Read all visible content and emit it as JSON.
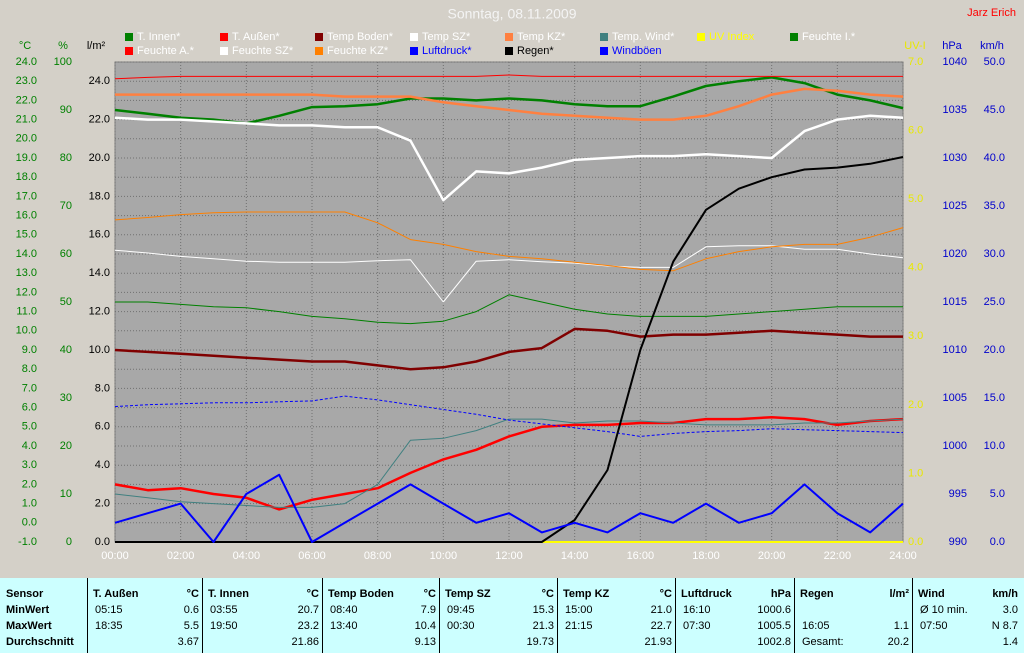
{
  "chart_data": {
    "type": "line",
    "title": "Sonntag, 08.11.2009",
    "author": "Jarz Erich",
    "x": [
      0,
      1,
      2,
      3,
      4,
      5,
      6,
      7,
      8,
      9,
      10,
      11,
      12,
      13,
      14,
      15,
      16,
      17,
      18,
      19,
      20,
      21,
      22,
      23,
      24
    ],
    "xlim": [
      0,
      24
    ],
    "xticks": [
      {
        "value": 0,
        "label": "00:00"
      },
      {
        "value": 2,
        "label": "02:00"
      },
      {
        "value": 4,
        "label": "04:00"
      },
      {
        "value": 6,
        "label": "06:00"
      },
      {
        "value": 8,
        "label": "08:00"
      },
      {
        "value": 10,
        "label": "10:00"
      },
      {
        "value": 12,
        "label": "12:00"
      },
      {
        "value": 14,
        "label": "14:00"
      },
      {
        "value": 16,
        "label": "16:00"
      },
      {
        "value": 18,
        "label": "18:00"
      },
      {
        "value": 20,
        "label": "20:00"
      },
      {
        "value": 22,
        "label": "22:00"
      },
      {
        "value": 24,
        "label": "24:00"
      }
    ],
    "grid": true,
    "axes": [
      {
        "label": "°C",
        "color": "#008000",
        "lim": [
          -1,
          24
        ],
        "ticks": [
          {
            "value": -1,
            "label": "-1.0"
          },
          {
            "value": 0,
            "label": "0.0"
          },
          {
            "value": 1,
            "label": "1.0"
          },
          {
            "value": 2,
            "label": "2.0"
          },
          {
            "value": 3,
            "label": "3.0"
          },
          {
            "value": 4,
            "label": "4.0"
          },
          {
            "value": 5,
            "label": "5.0"
          },
          {
            "value": 6,
            "label": "6.0"
          },
          {
            "value": 7,
            "label": "7.0"
          },
          {
            "value": 8,
            "label": "8.0"
          },
          {
            "value": 9,
            "label": "9.0"
          },
          {
            "value": 10,
            "label": "10.0"
          },
          {
            "value": 11,
            "label": "11.0"
          },
          {
            "value": 12,
            "label": "12.0"
          },
          {
            "value": 13,
            "label": "13.0"
          },
          {
            "value": 14,
            "label": "14.0"
          },
          {
            "value": 15,
            "label": "15.0"
          },
          {
            "value": 16,
            "label": "16.0"
          },
          {
            "value": 17,
            "label": "17.0"
          },
          {
            "value": 18,
            "label": "18.0"
          },
          {
            "value": 19,
            "label": "19.0"
          },
          {
            "value": 20,
            "label": "20.0"
          },
          {
            "value": 21,
            "label": "21.0"
          },
          {
            "value": 22,
            "label": "22.0"
          },
          {
            "value": 23,
            "label": "23.0"
          },
          {
            "value": 24,
            "label": "24.0"
          }
        ]
      },
      {
        "label": "%",
        "color": "#008000",
        "lim": [
          0,
          100
        ],
        "ticks": [
          0,
          10,
          20,
          30,
          40,
          50,
          60,
          70,
          80,
          90,
          100
        ]
      },
      {
        "label": "l/m²",
        "color": "#000000",
        "lim": [
          0,
          25
        ],
        "ticks": [
          {
            "value": 0,
            "label": "0.0"
          },
          {
            "value": 2,
            "label": "2.0"
          },
          {
            "value": 4,
            "label": "4.0"
          },
          {
            "value": 6,
            "label": "6.0"
          },
          {
            "value": 8,
            "label": "8.0"
          },
          {
            "value": 10,
            "label": "10.0"
          },
          {
            "value": 12,
            "label": "12.0"
          },
          {
            "value": 14,
            "label": "14.0"
          },
          {
            "value": 16,
            "label": "16.0"
          },
          {
            "value": 18,
            "label": "18.0"
          },
          {
            "value": 20,
            "label": "20.0"
          },
          {
            "value": 22,
            "label": "22.0"
          },
          {
            "value": 24,
            "label": "24.0"
          }
        ]
      },
      {
        "label": "UV-I",
        "color": "#e8e800",
        "lim": [
          0,
          7
        ],
        "ticks": [
          {
            "value": 0,
            "label": "0.0"
          },
          {
            "value": 1,
            "label": "1.0"
          },
          {
            "value": 2,
            "label": "2.0"
          },
          {
            "value": 3,
            "label": "3.0"
          },
          {
            "value": 4,
            "label": "4.0"
          },
          {
            "value": 5,
            "label": "5.0"
          },
          {
            "value": 6,
            "label": "6.0"
          },
          {
            "value": 7,
            "label": "7.0"
          }
        ]
      },
      {
        "label": "hPa",
        "color": "#0000cc",
        "lim": [
          990,
          1040
        ],
        "ticks": [
          990,
          995,
          1000,
          1005,
          1010,
          1015,
          1020,
          1025,
          1030,
          1035,
          1040
        ]
      },
      {
        "label": "km/h",
        "color": "#0000cc",
        "lim": [
          0,
          50
        ],
        "ticks": [
          {
            "value": 0,
            "label": "0.0"
          },
          {
            "value": 5,
            "label": "5.0"
          },
          {
            "value": 10,
            "label": "10.0"
          },
          {
            "value": 15,
            "label": "15.0"
          },
          {
            "value": 20,
            "label": "20.0"
          },
          {
            "value": 25,
            "label": "25.0"
          },
          {
            "value": 30,
            "label": "30.0"
          },
          {
            "value": 35,
            "label": "35.0"
          },
          {
            "value": 40,
            "label": "40.0"
          },
          {
            "value": 45,
            "label": "45.0"
          },
          {
            "value": 50,
            "label": "50.0"
          }
        ]
      }
    ],
    "series": [
      {
        "name": "T. Innen*",
        "color": "#008000",
        "text_color": "#ffffff",
        "axis": 0,
        "width": 2.5,
        "values": [
          21.5,
          21.3,
          21.1,
          21.0,
          20.8,
          21.2,
          21.65,
          21.7,
          21.8,
          22.1,
          22.1,
          22.0,
          22.1,
          22.0,
          21.8,
          21.7,
          21.7,
          22.2,
          22.75,
          23.0,
          23.2,
          22.9,
          22.3,
          22.0,
          21.6
        ]
      },
      {
        "name": "T. Außen*",
        "color": "#ff0000",
        "text_color": "#ffffff",
        "axis": 0,
        "width": 2.5,
        "values": [
          2.0,
          1.7,
          1.8,
          1.5,
          1.3,
          0.7,
          1.2,
          1.5,
          1.8,
          2.6,
          3.3,
          3.8,
          4.5,
          5.0,
          5.1,
          5.1,
          5.2,
          5.2,
          5.4,
          5.4,
          5.5,
          5.4,
          5.1,
          5.3,
          5.4
        ]
      },
      {
        "name": "Temp Boden*",
        "color": "#800000",
        "text_color": "#ffffff",
        "axis": 0,
        "width": 2.5,
        "values": [
          9.0,
          8.9,
          8.8,
          8.7,
          8.6,
          8.5,
          8.4,
          8.4,
          8.2,
          8.0,
          8.1,
          8.4,
          8.9,
          9.1,
          10.1,
          10.0,
          9.7,
          9.8,
          9.8,
          9.9,
          10.0,
          9.9,
          9.8,
          9.7,
          9.7
        ]
      },
      {
        "name": "Temp SZ*",
        "color": "#ffffff",
        "text_color": "#ffffff",
        "axis": 0,
        "width": 2.5,
        "values": [
          21.1,
          21.0,
          21.0,
          20.9,
          20.8,
          20.7,
          20.7,
          20.6,
          20.6,
          19.9,
          16.8,
          18.3,
          18.2,
          18.5,
          18.9,
          19.0,
          19.1,
          19.1,
          19.2,
          19.1,
          19.0,
          20.4,
          21.0,
          21.2,
          21.1
        ]
      },
      {
        "name": "Temp KZ*",
        "color": "#ff8040",
        "text_color": "#ffffff",
        "axis": 0,
        "width": 2.5,
        "values": [
          22.3,
          22.3,
          22.3,
          22.3,
          22.3,
          22.3,
          22.3,
          22.2,
          22.2,
          22.2,
          21.9,
          21.7,
          21.5,
          21.3,
          21.2,
          21.1,
          21.0,
          21.0,
          21.2,
          21.7,
          22.3,
          22.6,
          22.5,
          22.3,
          22.2
        ]
      },
      {
        "name": "Temp. Wind*",
        "color": "#408080",
        "text_color": "#ffffff",
        "axis": 0,
        "width": 1,
        "values": [
          1.5,
          1.3,
          1.1,
          1.0,
          0.9,
          0.8,
          0.8,
          1.0,
          2.0,
          4.3,
          4.4,
          4.8,
          5.4,
          5.4,
          5.2,
          5.3,
          5.3,
          5.2,
          5.1,
          5.1,
          5.1,
          5.2,
          5.2,
          5.3,
          5.4
        ]
      },
      {
        "name": "UV Index",
        "color": "#ffff00",
        "text_color": "#ffff00",
        "axis": 3,
        "width": 2,
        "values": [
          0,
          0,
          0,
          0,
          0,
          0,
          0,
          0,
          0,
          0,
          0,
          0,
          0,
          0,
          0,
          0,
          0,
          0,
          0,
          0,
          0,
          0,
          0,
          0,
          0
        ]
      },
      {
        "name": "Feuchte I.*",
        "color": "#008000",
        "text_color": "#ffffff",
        "axis": 1,
        "width": 1,
        "values": [
          50,
          50,
          49.5,
          49,
          48.8,
          48,
          47,
          46.5,
          45.8,
          45.5,
          46,
          48,
          51.5,
          50,
          48.5,
          47.5,
          47,
          47,
          47,
          47.5,
          48,
          48.5,
          49,
          49,
          49
        ]
      },
      {
        "name": "Feuchte A.*",
        "color": "#ff0000",
        "text_color": "#ffffff",
        "axis": 1,
        "width": 1,
        "values": [
          96.5,
          96.8,
          97,
          97,
          97,
          97,
          97,
          97,
          97,
          97,
          97,
          97,
          97.3,
          97,
          97,
          97,
          97,
          97,
          97,
          97,
          97,
          97,
          97,
          97,
          97
        ]
      },
      {
        "name": "Feuchte SZ*",
        "color": "#ffffff",
        "text_color": "#ffffff",
        "axis": 1,
        "width": 1,
        "values": [
          60.8,
          60.2,
          59.5,
          59,
          58.5,
          58.3,
          58.3,
          58.3,
          58.6,
          58.8,
          50,
          58.5,
          58.8,
          58.4,
          58.1,
          57.5,
          57.2,
          57.2,
          61.5,
          61.7,
          61.7,
          61,
          61,
          60,
          59.2
        ]
      },
      {
        "name": "Feuchte KZ*",
        "color": "#ff8000",
        "text_color": "#ffffff",
        "axis": 1,
        "width": 1,
        "values": [
          67.1,
          67.6,
          68.2,
          68.6,
          68.75,
          68.75,
          68.75,
          68.75,
          66.5,
          63,
          62,
          60.5,
          59.5,
          59,
          58.3,
          57.6,
          56.8,
          56.5,
          59,
          60.5,
          61.5,
          62,
          62,
          63.5,
          65.5
        ]
      },
      {
        "name": "Luftdruck*",
        "color": "#0000ff",
        "text_color": "#0000ff",
        "axis": 4,
        "width": 1,
        "dashed": true,
        "values": [
          1004.1,
          1004.3,
          1004.4,
          1004.5,
          1004.5,
          1004.6,
          1004.7,
          1005.2,
          1004.8,
          1004.3,
          1003.8,
          1003.3,
          1002.7,
          1002.3,
          1001.9,
          1001.5,
          1001.0,
          1001.3,
          1001.5,
          1001.6,
          1001.8,
          1001.7,
          1001.6,
          1001.5,
          1001.4
        ]
      },
      {
        "name": "Regen*",
        "color": "#000000",
        "text_color": "#000000",
        "axis": 2,
        "width": 2,
        "values": [
          0,
          0,
          0,
          0,
          0,
          0,
          0,
          0,
          0,
          0,
          0,
          0,
          0,
          0,
          1.15,
          3.75,
          10,
          14.6,
          17.3,
          18.4,
          19.0,
          19.4,
          19.5,
          19.7,
          20.05
        ]
      },
      {
        "name": "Windböen",
        "color": "#0000ff",
        "text_color": "#0000ff",
        "axis": 5,
        "width": 2,
        "values": [
          2,
          3,
          4,
          0,
          5,
          7,
          0,
          2,
          4,
          6,
          4,
          2,
          3,
          1,
          2,
          1,
          3,
          2,
          4,
          2,
          3,
          6,
          3,
          1,
          4
        ]
      }
    ]
  },
  "table": {
    "corner": "Sensor",
    "row_labels": [
      "MinWert",
      "MaxWert",
      "Durchschnitt"
    ],
    "columns": [
      {
        "name": "T. Außen",
        "unit": "°C",
        "rows": [
          [
            "05:15",
            "0.6"
          ],
          [
            "18:35",
            "5.5"
          ],
          [
            null,
            "3.67"
          ]
        ]
      },
      {
        "name": "T. Innen",
        "unit": "°C",
        "rows": [
          [
            "03:55",
            "20.7"
          ],
          [
            "19:50",
            "23.2"
          ],
          [
            null,
            "21.86"
          ]
        ]
      },
      {
        "name": "Temp Boden",
        "unit": "°C",
        "rows": [
          [
            "08:40",
            "7.9"
          ],
          [
            "13:40",
            "10.4"
          ],
          [
            null,
            "9.13"
          ]
        ]
      },
      {
        "name": "Temp SZ",
        "unit": "°C",
        "rows": [
          [
            "09:45",
            "15.3"
          ],
          [
            "00:30",
            "21.3"
          ],
          [
            null,
            "19.73"
          ]
        ]
      },
      {
        "name": "Temp KZ",
        "unit": "°C",
        "rows": [
          [
            "15:00",
            "21.0"
          ],
          [
            "21:15",
            "22.7"
          ],
          [
            null,
            "21.93"
          ]
        ]
      },
      {
        "name": "Luftdruck",
        "unit": "hPa",
        "rows": [
          [
            "16:10",
            "1000.6"
          ],
          [
            "07:30",
            "1005.5"
          ],
          [
            null,
            "1002.8"
          ]
        ]
      },
      {
        "name": "Regen",
        "unit": "l/m²",
        "rows": [
          [
            null,
            null
          ],
          [
            "16:05",
            "1.1"
          ],
          [
            "Gesamt:",
            "20.2"
          ]
        ]
      },
      {
        "name": "Wind",
        "unit": "km/h",
        "rows": [
          [
            "Ø 10 min.",
            "3.0"
          ],
          [
            "07:50",
            "N 8.7"
          ],
          [
            null,
            "1.4"
          ]
        ]
      }
    ]
  }
}
